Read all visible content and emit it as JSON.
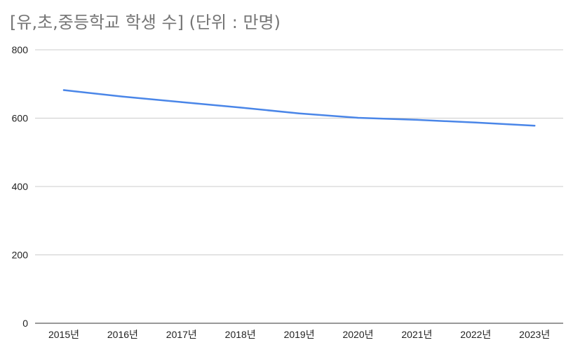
{
  "chart_data": {
    "type": "line",
    "title": "[유,초,중등학교 학생 수] (단위 : 만명)",
    "categories": [
      "2015년",
      "2016년",
      "2017년",
      "2018년",
      "2019년",
      "2020년",
      "2021년",
      "2022년",
      "2023년"
    ],
    "series": [
      {
        "values": [
          682,
          663,
          647,
          631,
          614,
          601,
          595,
          587,
          578
        ],
        "color": "#4a86e8"
      }
    ],
    "ylim": [
      0,
      800
    ],
    "yticks": [
      "0",
      "200",
      "400",
      "600",
      "800"
    ],
    "grid": true,
    "legend": "none"
  }
}
